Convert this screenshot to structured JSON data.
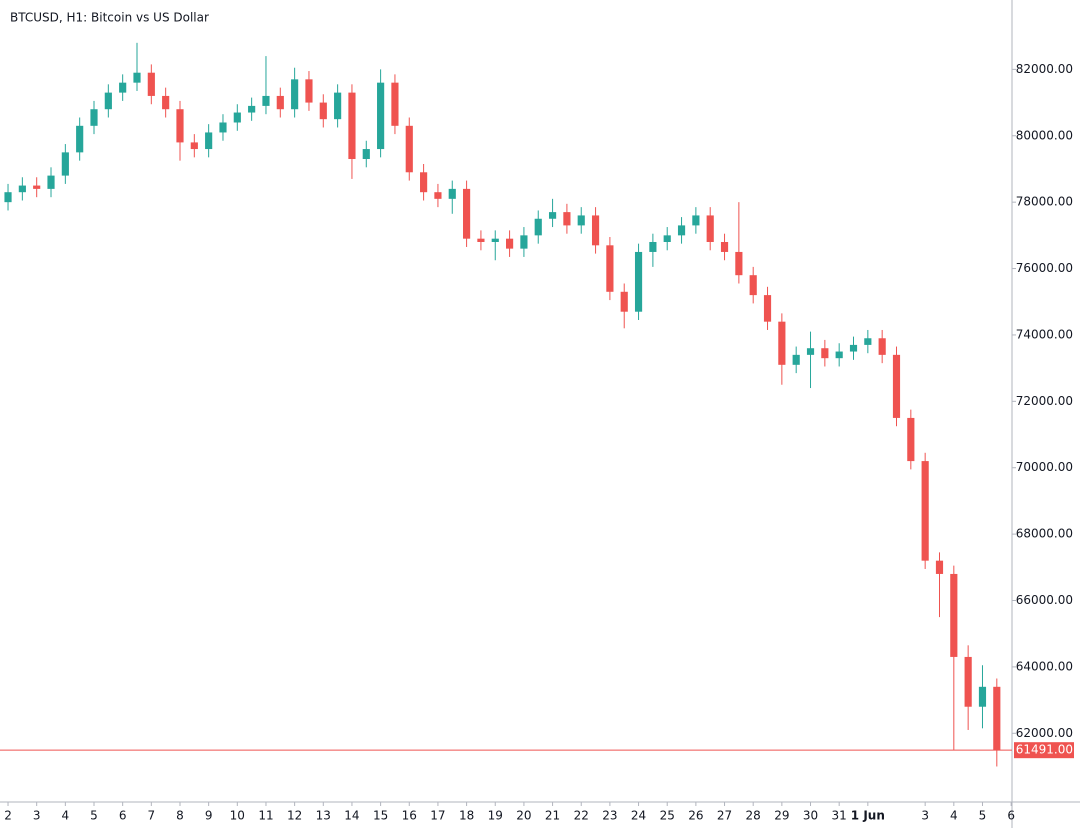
{
  "chart_data": {
    "type": "candlestick",
    "title": "BTCUSD, H1: Bitcoin vs US Dollar",
    "up_color": "#26a69a",
    "down_color": "#ef5350",
    "xlim": [
      -0.28,
      35.03
    ],
    "ylim": [
      59930,
      84090
    ],
    "xticks": [
      {
        "value": 0,
        "label": "2"
      },
      {
        "value": 1,
        "label": "3"
      },
      {
        "value": 2,
        "label": "4"
      },
      {
        "value": 3,
        "label": "5"
      },
      {
        "value": 4,
        "label": "6"
      },
      {
        "value": 5,
        "label": "7"
      },
      {
        "value": 6,
        "label": "8"
      },
      {
        "value": 7,
        "label": "9"
      },
      {
        "value": 8,
        "label": "10"
      },
      {
        "value": 9,
        "label": "11"
      },
      {
        "value": 10,
        "label": "12"
      },
      {
        "value": 11,
        "label": "13"
      },
      {
        "value": 12,
        "label": "14"
      },
      {
        "value": 13,
        "label": "15"
      },
      {
        "value": 14,
        "label": "16"
      },
      {
        "value": 15,
        "label": "17"
      },
      {
        "value": 16,
        "label": "18"
      },
      {
        "value": 17,
        "label": "19"
      },
      {
        "value": 18,
        "label": "20"
      },
      {
        "value": 19,
        "label": "21"
      },
      {
        "value": 20,
        "label": "22"
      },
      {
        "value": 21,
        "label": "23"
      },
      {
        "value": 22,
        "label": "24"
      },
      {
        "value": 23,
        "label": "25"
      },
      {
        "value": 24,
        "label": "26"
      },
      {
        "value": 25,
        "label": "27"
      },
      {
        "value": 26,
        "label": "28"
      },
      {
        "value": 27,
        "label": "29"
      },
      {
        "value": 28,
        "label": "30"
      },
      {
        "value": 29,
        "label": "31"
      },
      {
        "value": 30,
        "label": "1 Jun"
      },
      {
        "value": 32,
        "label": "3"
      },
      {
        "value": 33,
        "label": "4"
      },
      {
        "value": 34,
        "label": "5"
      },
      {
        "value": 35,
        "label": "6"
      }
    ],
    "yticks": [
      {
        "value": 62000,
        "label": "62000.00"
      },
      {
        "value": 64000,
        "label": "64000.00"
      },
      {
        "value": 66000,
        "label": "66000.00"
      },
      {
        "value": 68000,
        "label": "68000.00"
      },
      {
        "value": 70000,
        "label": "70000.00"
      },
      {
        "value": 72000,
        "label": "72000.00"
      },
      {
        "value": 74000,
        "label": "74000.00"
      },
      {
        "value": 76000,
        "label": "76000.00"
      },
      {
        "value": 78000,
        "label": "78000.00"
      },
      {
        "value": 80000,
        "label": "80000.00"
      },
      {
        "value": 82000,
        "label": "82000.00"
      }
    ],
    "last_price": {
      "value": 61491,
      "label": "61491.00",
      "color": "#ef5350"
    },
    "x": [
      0,
      0.5,
      1,
      1.5,
      2,
      2.5,
      3,
      3.5,
      4,
      4.5,
      5,
      5.5,
      6,
      6.5,
      7,
      7.5,
      8,
      8.5,
      9,
      9.5,
      10,
      10.5,
      11,
      11.5,
      12,
      12.5,
      13,
      13.5,
      14,
      14.5,
      15,
      15.5,
      16,
      16.5,
      17,
      17.5,
      18,
      18.5,
      19,
      19.5,
      20,
      20.5,
      21,
      21.5,
      22,
      22.5,
      23,
      23.5,
      24,
      24.5,
      25,
      25.5,
      26,
      26.5,
      27,
      27.5,
      28,
      28.5,
      29,
      29.5,
      30,
      30.5,
      31,
      31.5,
      32,
      32.5,
      33,
      33.5,
      34,
      34.5
    ],
    "open": [
      78000,
      78300,
      78500,
      78400,
      78800,
      79500,
      80300,
      80800,
      81300,
      81600,
      81900,
      81200,
      80800,
      79800,
      79600,
      80100,
      80400,
      80700,
      80900,
      81200,
      80800,
      81700,
      81000,
      80500,
      81300,
      79300,
      79600,
      81600,
      80300,
      78900,
      78300,
      78100,
      78400,
      76900,
      76800,
      76900,
      76600,
      77000,
      77500,
      77700,
      77300,
      77600,
      76700,
      75300,
      74700,
      76500,
      76800,
      77000,
      77300,
      77600,
      76800,
      76500,
      75800,
      75200,
      74400,
      73100,
      73400,
      73600,
      73300,
      73500,
      73700,
      73900,
      73400,
      71500,
      70200,
      67200,
      66800,
      64300,
      62800,
      63400
    ],
    "high": [
      78550,
      78750,
      78750,
      79050,
      79750,
      80550,
      81050,
      81550,
      81850,
      82800,
      82150,
      81450,
      81050,
      80050,
      80350,
      80650,
      80950,
      81150,
      82400,
      81450,
      82050,
      81950,
      81250,
      81550,
      81550,
      79850,
      82000,
      81850,
      80550,
      79150,
      78550,
      78650,
      78650,
      77150,
      77150,
      77150,
      77250,
      77750,
      78100,
      77950,
      77850,
      77850,
      76950,
      75550,
      76750,
      77050,
      77250,
      77550,
      77850,
      77850,
      77050,
      78000,
      76050,
      75450,
      74650,
      73650,
      74100,
      73850,
      73750,
      73950,
      74150,
      74150,
      73650,
      71750,
      70450,
      67450,
      67050,
      64650,
      64050,
      63650
    ],
    "low": [
      77750,
      78050,
      78150,
      78150,
      78550,
      79250,
      80050,
      80550,
      81050,
      81350,
      80950,
      80550,
      79250,
      79350,
      79350,
      79850,
      80150,
      80450,
      80650,
      80550,
      80550,
      80750,
      80250,
      80250,
      78700,
      79050,
      79350,
      80050,
      78650,
      78050,
      77850,
      77650,
      76650,
      76550,
      76250,
      76350,
      76350,
      76750,
      77250,
      77050,
      77050,
      76450,
      75050,
      74200,
      74450,
      76050,
      76550,
      76750,
      77050,
      76550,
      76250,
      75550,
      74950,
      74150,
      72500,
      72850,
      72400,
      73050,
      73050,
      73250,
      73450,
      73150,
      71250,
      69950,
      66950,
      65500,
      61500,
      62100,
      62150,
      61000
    ],
    "close": [
      78300,
      78500,
      78400,
      78800,
      79500,
      80300,
      80800,
      81300,
      81600,
      81900,
      81200,
      80800,
      79800,
      79600,
      80100,
      80400,
      80700,
      80900,
      81200,
      80800,
      81700,
      81000,
      80500,
      81300,
      79300,
      79600,
      81600,
      80300,
      78900,
      78300,
      78100,
      78400,
      76900,
      76800,
      76900,
      76600,
      77000,
      77500,
      77700,
      77300,
      77600,
      76700,
      75300,
      74700,
      76500,
      76800,
      77000,
      77300,
      77600,
      76800,
      76500,
      75800,
      75200,
      74400,
      73100,
      73400,
      73600,
      73300,
      73500,
      73700,
      73900,
      73400,
      71500,
      70200,
      67200,
      66800,
      64300,
      62800,
      63400,
      61491
    ]
  }
}
